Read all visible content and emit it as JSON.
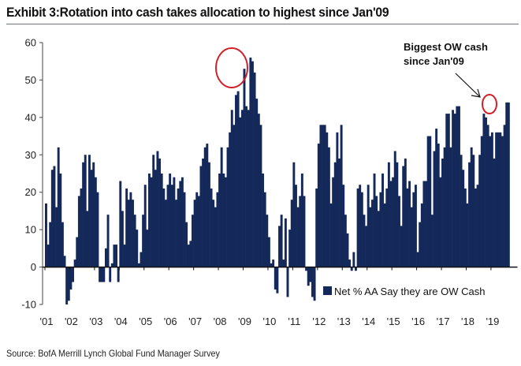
{
  "header": {
    "title": "Exhibit 3:Rotation into cash takes allocation to highest since Jan'09"
  },
  "footer": {
    "source": "Source: BofA Merrill Lynch Global Fund Manager Survey"
  },
  "chart_data": {
    "type": "bar",
    "title": "Exhibit 3:Rotation into cash takes allocation to highest since Jan'09",
    "xlabel": "",
    "ylabel": "",
    "ylim": [
      -10,
      60
    ],
    "yticks": [
      -10,
      0,
      10,
      20,
      30,
      40,
      50,
      60
    ],
    "xticks": [
      "'01",
      "'02",
      "'03",
      "'04",
      "'05",
      "'06",
      "'07",
      "'08",
      "'09",
      "'10",
      "'11",
      "'12",
      "'13",
      "'14",
      "'15",
      "'16",
      "'17",
      "'18",
      "'19"
    ],
    "x_start": "Jan 2001",
    "frequency": "monthly",
    "grid": false,
    "legend": {
      "position": "bottom-right",
      "entries": [
        "Net % AA Say they are OW Cash"
      ]
    },
    "series": [
      {
        "name": "Net % AA Say they are OW Cash",
        "color": "#14295a",
        "values": [
          17,
          6,
          12,
          26,
          27,
          16,
          32,
          25,
          12,
          3,
          -10,
          -9,
          -6,
          -4,
          2,
          8,
          19,
          21,
          28,
          30,
          15,
          30,
          26,
          28,
          24,
          20,
          -4,
          -4,
          -4,
          5,
          14,
          -4,
          1,
          6,
          6,
          -4,
          23,
          15,
          6,
          21,
          18,
          20,
          18,
          14,
          10,
          1,
          4,
          14,
          22,
          10,
          25,
          24,
          30,
          26,
          31,
          29,
          25,
          21,
          18,
          22,
          25,
          22,
          24,
          18,
          21,
          23,
          24,
          20,
          12,
          6,
          7,
          14,
          18,
          20,
          19,
          27,
          29,
          32,
          33,
          28,
          21,
          18,
          16,
          20,
          25,
          32,
          25,
          24,
          32,
          36,
          42,
          38,
          46,
          47,
          40,
          42,
          53,
          43,
          42,
          56,
          55,
          52,
          45,
          41,
          38,
          25,
          20,
          14,
          8,
          1,
          2,
          -6,
          -7,
          11,
          14,
          2,
          13,
          -8,
          10,
          18,
          28,
          22,
          16,
          19,
          25,
          19,
          -1,
          -5,
          -4,
          -8,
          -9,
          21,
          33,
          38,
          38,
          38,
          36,
          32,
          17,
          24,
          28,
          36,
          29,
          38,
          22,
          14,
          9,
          2,
          -1,
          4,
          -1,
          21,
          22,
          20,
          14,
          11,
          22,
          16,
          18,
          25,
          19,
          15,
          20,
          25,
          17,
          21,
          28,
          23,
          24,
          31,
          28,
          19,
          11,
          27,
          29,
          21,
          23,
          16,
          20,
          22,
          4,
          12,
          17,
          23,
          23,
          35,
          35,
          14,
          31,
          37,
          33,
          24,
          29,
          32,
          41,
          41,
          32,
          42,
          41,
          43,
          43,
          30,
          26,
          21,
          17,
          28,
          32,
          30,
          21,
          22,
          30,
          35,
          41,
          40,
          38,
          35,
          36,
          29,
          36,
          36,
          36,
          35,
          38,
          44,
          44
        ]
      }
    ],
    "annotations": [
      {
        "text_lines": [
          "Biggest OW cash",
          "since Jan'09"
        ],
        "target": "latest value (2019)",
        "marker": "red circle"
      },
      {
        "text_lines": [],
        "target": "2008-09 peak",
        "marker": "red circle"
      }
    ]
  }
}
